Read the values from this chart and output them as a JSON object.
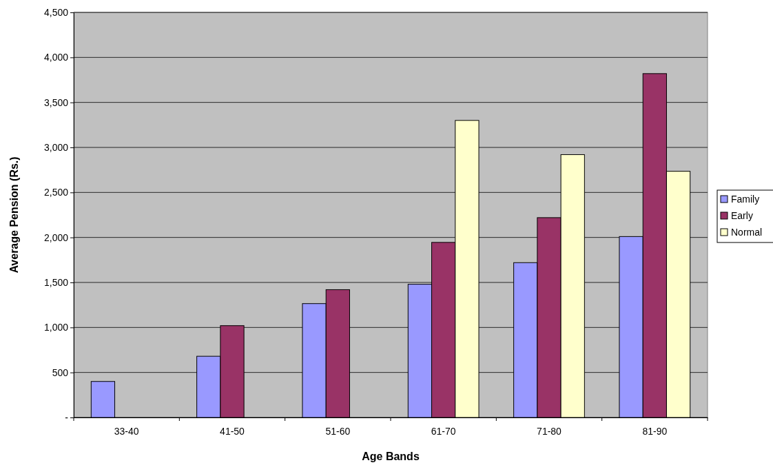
{
  "chart_data": {
    "type": "bar",
    "xlabel": "Age Bands",
    "ylabel": "Average Pension (Rs.)",
    "categories": [
      "33-40",
      "41-50",
      "51-60",
      "61-70",
      "71-80",
      "81-90"
    ],
    "series": [
      {
        "name": "Family",
        "color": "#9999ff",
        "values": [
          400,
          680,
          1265,
          1480,
          1720,
          2010
        ]
      },
      {
        "name": "Early",
        "color": "#993366",
        "values": [
          null,
          1020,
          1420,
          1945,
          2220,
          3820
        ]
      },
      {
        "name": "Normal",
        "color": "#ffffcc",
        "values": [
          null,
          null,
          null,
          3300,
          2920,
          2735
        ]
      }
    ],
    "ylim": [
      0,
      4500
    ],
    "yticks": [
      {
        "value": 0,
        "label": "-"
      },
      {
        "value": 500,
        "label": "500"
      },
      {
        "value": 1000,
        "label": "1,000"
      },
      {
        "value": 1500,
        "label": "1,500"
      },
      {
        "value": 2000,
        "label": "2,000"
      },
      {
        "value": 2500,
        "label": "2,500"
      },
      {
        "value": 3000,
        "label": "3,000"
      },
      {
        "value": 3500,
        "label": "3,500"
      },
      {
        "value": 4000,
        "label": "4,000"
      },
      {
        "value": 4500,
        "label": "4,500"
      }
    ],
    "grid": "y",
    "legend": "right"
  }
}
